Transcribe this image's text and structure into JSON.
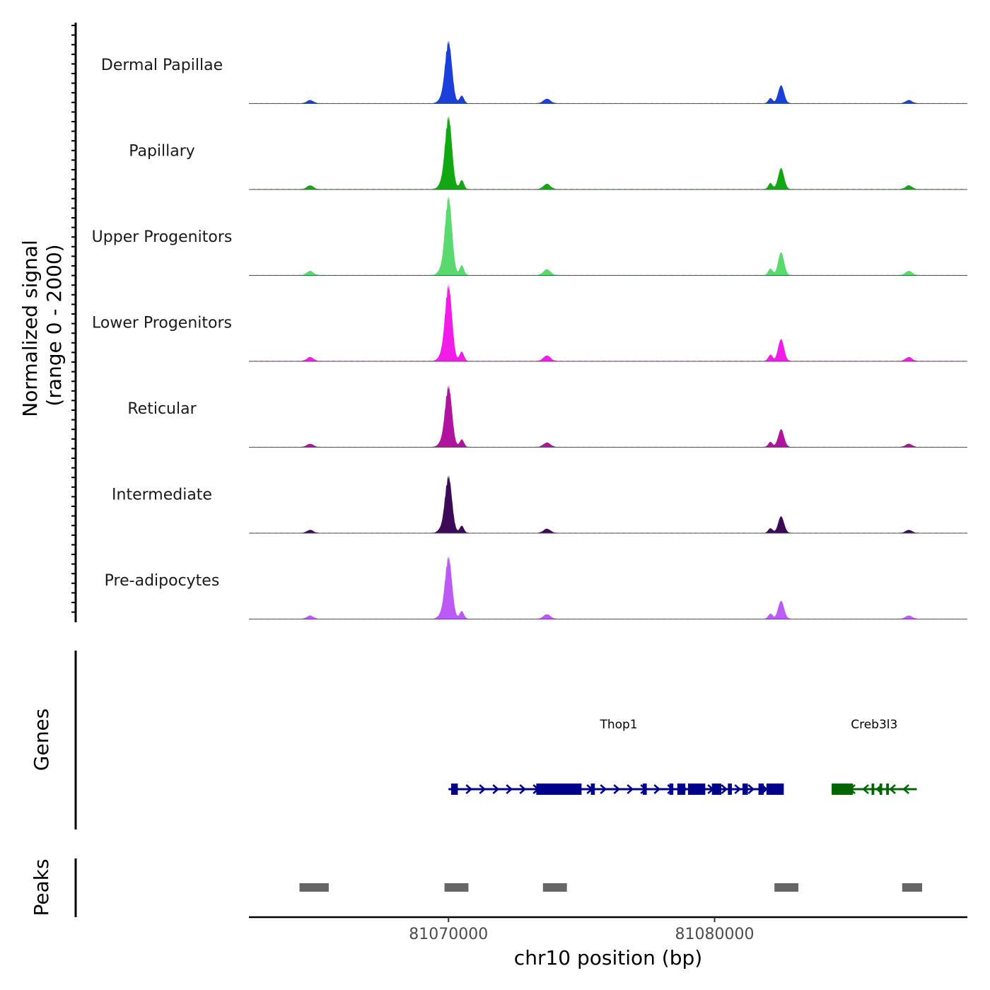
{
  "chart_data": {
    "type": "area",
    "chromosome": "chr10",
    "xlabel": "chr10 position (bp)",
    "xlim": [
      81062500,
      81089500
    ],
    "x_ticks": [
      81070000,
      81080000
    ],
    "x_tick_labels": [
      "81070000",
      "81080000"
    ],
    "signal_axis_label": [
      "Normalized signal",
      "(range 0 - 2000)"
    ],
    "ylim": [
      0,
      2000
    ],
    "genes_axis_label": "Genes",
    "peaks_axis_label": "Peaks",
    "signal_peaks": [
      {
        "center": 81064800,
        "width": 120,
        "rel": 0.05
      },
      {
        "center": 81069700,
        "width": 110,
        "rel": 0.05
      },
      {
        "center": 81070000,
        "width": 130,
        "rel": 1.0
      },
      {
        "center": 81070500,
        "width": 80,
        "rel": 0.12
      },
      {
        "center": 81073700,
        "width": 130,
        "rel": 0.07
      },
      {
        "center": 81082100,
        "width": 80,
        "rel": 0.08
      },
      {
        "center": 81082500,
        "width": 110,
        "rel": 0.28
      },
      {
        "center": 81087300,
        "width": 120,
        "rel": 0.05
      }
    ],
    "series": [
      {
        "name": "Dermal Papillae",
        "color": "#1a40d9",
        "max": 1580
      },
      {
        "name": "Papillary",
        "color": "#11a811",
        "max": 1850
      },
      {
        "name": "Upper Progenitors",
        "color": "#59d96e",
        "max": 2000
      },
      {
        "name": "Lower Progenitors",
        "color": "#f21ce8",
        "max": 1930
      },
      {
        "name": "Reticular",
        "color": "#b0139e",
        "max": 1550
      },
      {
        "name": "Intermediate",
        "color": "#3b0b57",
        "max": 1450
      },
      {
        "name": "Pre-adipocytes",
        "color": "#bd59f5",
        "max": 1580
      }
    ],
    "genes": [
      {
        "name": "Thop1",
        "strand": "+",
        "color": "#00008b",
        "start": 81070000,
        "end": 81082600,
        "label_x": 81076400,
        "exons": [
          [
            81070100,
            81070350
          ],
          [
            81073300,
            81075000
          ],
          [
            81075350,
            81075500
          ],
          [
            81077300,
            81077450
          ],
          [
            81078300,
            81078450
          ],
          [
            81078600,
            81078900
          ],
          [
            81079000,
            81079650
          ],
          [
            81079900,
            81080250
          ],
          [
            81080500,
            81080650
          ],
          [
            81081050,
            81081250
          ],
          [
            81081650,
            81081850
          ],
          [
            81081950,
            81082600
          ]
        ]
      },
      {
        "name": "Creb3l3",
        "strand": "-",
        "color": "#006400",
        "start": 81084400,
        "end": 81087600,
        "label_x": 81086000,
        "exons": [
          [
            81084400,
            81085200
          ],
          [
            81085900,
            81086000
          ],
          [
            81086200,
            81086300
          ],
          [
            81086450,
            81086550
          ]
        ]
      }
    ],
    "peak_regions": [
      [
        81064400,
        81065500
      ],
      [
        81069850,
        81070750
      ],
      [
        81073550,
        81074450
      ],
      [
        81082250,
        81083150
      ],
      [
        81087050,
        81087800
      ]
    ]
  }
}
